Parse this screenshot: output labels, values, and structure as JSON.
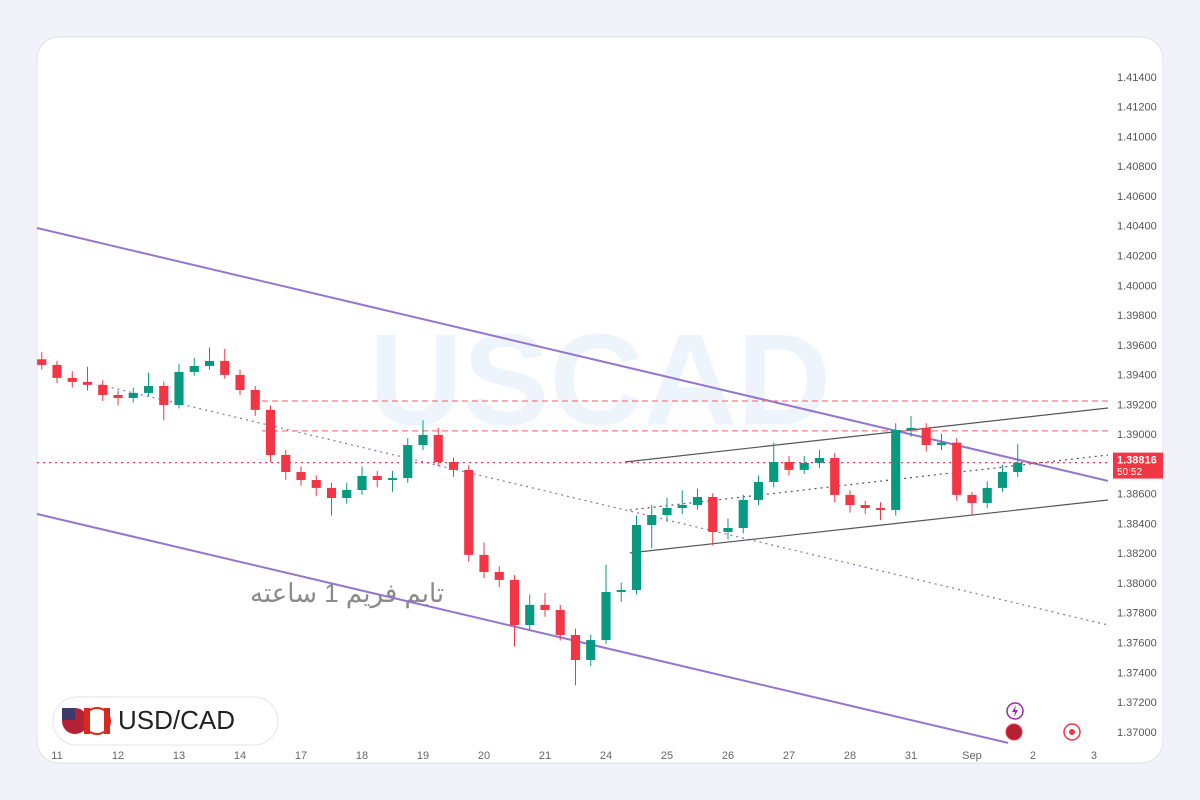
{
  "chart_data": {
    "type": "candlestick",
    "symbol": "USD/CAD",
    "watermark": "USCAD",
    "annotation": "تایم فریم 1 ساعته",
    "up_color": "#089981",
    "down_color": "#f23645",
    "current_price": 1.38816,
    "countdown": "50:52",
    "x": [
      -0.25,
      0,
      0.25,
      0.5,
      0.75,
      1,
      1.25,
      1.5,
      1.75,
      2,
      2.25,
      2.5,
      2.75,
      3,
      3.25,
      3.5,
      3.75,
      4,
      4.25,
      4.5,
      4.75,
      5,
      5.25,
      5.5,
      5.75,
      6,
      6.25,
      6.5,
      6.75,
      7,
      7.25,
      7.5,
      7.75,
      8,
      8.25,
      8.5,
      8.75,
      9,
      9.25,
      9.5,
      9.75,
      10,
      10.25,
      10.5,
      10.75,
      11,
      11.25,
      11.5,
      11.75,
      12,
      12.25,
      12.5,
      12.75,
      13,
      13.25,
      13.5,
      13.75,
      14,
      14.25,
      14.5,
      14.75,
      15,
      15.25,
      15.5,
      15.75
    ],
    "open": [
      1.3951,
      1.39472,
      1.39385,
      1.39358,
      1.39338,
      1.3927,
      1.3925,
      1.39284,
      1.39331,
      1.39203,
      1.39425,
      1.39465,
      1.39499,
      1.39405,
      1.39304,
      1.3917,
      1.38867,
      1.38753,
      1.38699,
      1.38646,
      1.38578,
      1.38632,
      1.38726,
      1.38699,
      1.38712,
      1.38934,
      1.39002,
      1.3882,
      1.38767,
      1.38196,
      1.38081,
      1.38028,
      1.37725,
      1.3786,
      1.37826,
      1.37658,
      1.3749,
      1.37624,
      1.37947,
      1.3796,
      1.38397,
      1.38464,
      1.38511,
      1.38531,
      1.38585,
      1.3835,
      1.38377,
      1.38565,
      1.38686,
      1.3882,
      1.38767,
      1.38814,
      1.38847,
      1.38599,
      1.38531,
      1.38511,
      1.38498,
      1.39035,
      1.39049,
      1.38934,
      1.3895,
      1.38599,
      1.38545,
      1.38646,
      1.38753
    ],
    "high": [
      1.3956,
      1.395,
      1.3943,
      1.3946,
      1.3937,
      1.393,
      1.3932,
      1.3942,
      1.3936,
      1.3948,
      1.3952,
      1.3959,
      1.3958,
      1.3944,
      1.3933,
      1.392,
      1.389,
      1.3879,
      1.3873,
      1.3868,
      1.3868,
      1.3879,
      1.3876,
      1.3876,
      1.3898,
      1.391,
      1.3905,
      1.3885,
      1.388,
      1.3828,
      1.3812,
      1.3806,
      1.3793,
      1.3794,
      1.3786,
      1.377,
      1.3766,
      1.3813,
      1.3801,
      1.3846,
      1.3853,
      1.3858,
      1.3863,
      1.3864,
      1.3861,
      1.3844,
      1.386,
      1.3873,
      1.3895,
      1.3886,
      1.3886,
      1.389,
      1.3888,
      1.3863,
      1.3856,
      1.3855,
      1.3908,
      1.3913,
      1.3908,
      1.3901,
      1.3898,
      1.3862,
      1.3869,
      1.388,
      1.3894
    ],
    "low": [
      1.3944,
      1.3935,
      1.3932,
      1.393,
      1.3923,
      1.392,
      1.3922,
      1.3926,
      1.391,
      1.3918,
      1.394,
      1.3944,
      1.3938,
      1.3927,
      1.3913,
      1.3882,
      1.387,
      1.3866,
      1.3859,
      1.3846,
      1.3854,
      1.386,
      1.3865,
      1.3862,
      1.3868,
      1.389,
      1.3879,
      1.3872,
      1.3815,
      1.3804,
      1.3798,
      1.3758,
      1.3769,
      1.3778,
      1.3762,
      1.3732,
      1.3745,
      1.376,
      1.3788,
      1.3793,
      1.3824,
      1.3842,
      1.3847,
      1.385,
      1.3826,
      1.383,
      1.3834,
      1.3853,
      1.3865,
      1.3873,
      1.3874,
      1.3878,
      1.3855,
      1.3848,
      1.3847,
      1.3843,
      1.3846,
      1.3899,
      1.3889,
      1.389,
      1.3856,
      1.3846,
      1.3851,
      1.3862,
      1.3872
    ],
    "close": [
      1.39472,
      1.39385,
      1.39358,
      1.39338,
      1.3927,
      1.3925,
      1.39284,
      1.39331,
      1.39203,
      1.39425,
      1.39465,
      1.39499,
      1.39405,
      1.39304,
      1.3917,
      1.38867,
      1.38753,
      1.38699,
      1.38646,
      1.38578,
      1.38632,
      1.38726,
      1.38699,
      1.38712,
      1.38934,
      1.39002,
      1.3882,
      1.38767,
      1.38196,
      1.38081,
      1.38028,
      1.37725,
      1.3786,
      1.37826,
      1.37658,
      1.3749,
      1.37624,
      1.37947,
      1.3796,
      1.38397,
      1.38464,
      1.38511,
      1.38531,
      1.38585,
      1.3835,
      1.38377,
      1.38565,
      1.38686,
      1.3882,
      1.38767,
      1.38814,
      1.38847,
      1.38599,
      1.38531,
      1.38511,
      1.38498,
      1.39035,
      1.39049,
      1.38934,
      1.3895,
      1.38599,
      1.38545,
      1.38646,
      1.38753,
      1.38816
    ],
    "xlim": [
      -0.328,
      17.23
    ],
    "ylim": [
      1.36798,
      1.41675
    ],
    "xticks": [
      {
        "value": 0,
        "label": "11"
      },
      {
        "value": 1,
        "label": "12"
      },
      {
        "value": 2,
        "label": "13"
      },
      {
        "value": 3,
        "label": "14"
      },
      {
        "value": 4,
        "label": "17"
      },
      {
        "value": 5,
        "label": "18"
      },
      {
        "value": 6,
        "label": "19"
      },
      {
        "value": 7,
        "label": "20"
      },
      {
        "value": 8,
        "label": "21"
      },
      {
        "value": 9,
        "label": "24"
      },
      {
        "value": 10,
        "label": "25"
      },
      {
        "value": 11,
        "label": "26"
      },
      {
        "value": 12,
        "label": "27"
      },
      {
        "value": 13,
        "label": "28"
      },
      {
        "value": 14,
        "label": "31"
      },
      {
        "value": 15,
        "label": "Sep"
      },
      {
        "value": 16,
        "label": "2"
      },
      {
        "value": 17,
        "label": "3"
      }
    ],
    "yticks": [
      {
        "value": 1.37,
        "label": "1.37000"
      },
      {
        "value": 1.372,
        "label": "1.37200"
      },
      {
        "value": 1.374,
        "label": "1.37400"
      },
      {
        "value": 1.376,
        "label": "1.37600"
      },
      {
        "value": 1.378,
        "label": "1.37800"
      },
      {
        "value": 1.38,
        "label": "1.38000"
      },
      {
        "value": 1.382,
        "label": "1.38200"
      },
      {
        "value": 1.384,
        "label": "1.38400"
      },
      {
        "value": 1.386,
        "label": "1.38600"
      },
      {
        "value": 1.388,
        "label": "1.38800"
      },
      {
        "value": 1.39,
        "label": "1.39000"
      },
      {
        "value": 1.392,
        "label": "1.39200"
      },
      {
        "value": 1.394,
        "label": "1.39400"
      },
      {
        "value": 1.396,
        "label": "1.39600"
      },
      {
        "value": 1.398,
        "label": "1.39800"
      },
      {
        "value": 1.4,
        "label": "1.40000"
      },
      {
        "value": 1.402,
        "label": "1.40200"
      },
      {
        "value": 1.404,
        "label": "1.40400"
      },
      {
        "value": 1.406,
        "label": "1.40600"
      },
      {
        "value": 1.408,
        "label": "1.40800"
      },
      {
        "value": 1.41,
        "label": "1.41000"
      },
      {
        "value": 1.412,
        "label": "1.41200"
      },
      {
        "value": 1.414,
        "label": "1.41400"
      }
    ],
    "grid": false,
    "trend_lines": [
      {
        "x": [
          -0.328,
          17.23
        ],
        "y": [
          1.40392,
          1.38693
        ],
        "color": "#9575cd",
        "style": "solid"
      },
      {
        "x": [
          -0.328,
          15.59
        ],
        "y": [
          1.38471,
          1.36933
        ],
        "color": "#9575cd",
        "style": "solid"
      },
      {
        "x": [
          0.705,
          17.23
        ],
        "y": [
          1.39338,
          1.37725
        ],
        "color": "#7e6fd0",
        "style": "dotted"
      },
      {
        "x": [
          9.31,
          17.23
        ],
        "y": [
          1.3882,
          1.39183
        ],
        "color": "#555555",
        "style": "solid"
      },
      {
        "x": [
          9.39,
          17.23
        ],
        "y": [
          1.38209,
          1.38565
        ],
        "color": "#555555",
        "style": "solid"
      },
      {
        "x": [
          9.39,
          17.23
        ],
        "y": [
          1.38498,
          1.38867
        ],
        "color": "#555555",
        "style": "dotted"
      },
      {
        "x": [
          3.36,
          17.23
        ],
        "y": [
          1.3923,
          1.3923
        ],
        "color": "#f77c80",
        "style": "dashed"
      },
      {
        "x": [
          3.36,
          17.23
        ],
        "y": [
          1.39029,
          1.39029
        ],
        "color": "#f77c80",
        "style": "dashed"
      },
      {
        "x": [
          -0.328,
          17.23
        ],
        "y": [
          1.38816,
          1.38816
        ],
        "color": "#f23645",
        "style": "dotted"
      }
    ]
  }
}
